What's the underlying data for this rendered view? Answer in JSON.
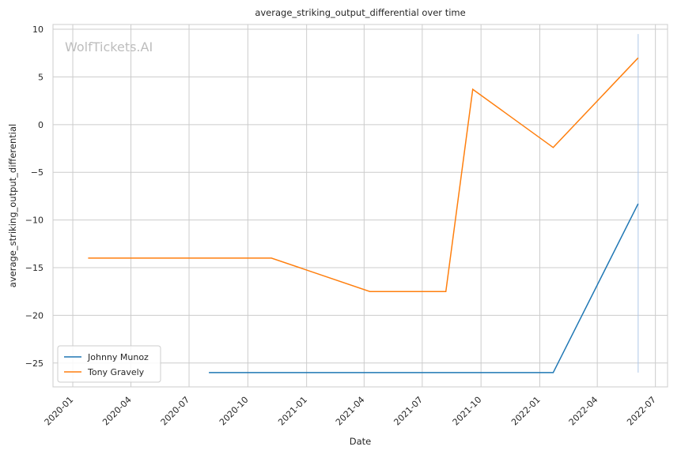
{
  "chart_data": {
    "type": "line",
    "title": "average_striking_output_differential over time",
    "xlabel": "Date",
    "ylabel": "average_striking_output_differential",
    "watermark": "WolfTickets.AI",
    "x_ticks": [
      "2020-01",
      "2020-04",
      "2020-07",
      "2020-10",
      "2021-01",
      "2021-04",
      "2021-07",
      "2021-10",
      "2022-01",
      "2022-04",
      "2022-07"
    ],
    "y_ticks": [
      10,
      5,
      0,
      -5,
      -10,
      -15,
      -20,
      -25
    ],
    "y_tick_labels": [
      "10",
      "5",
      "0",
      "−5",
      "−10",
      "−15",
      "−20",
      "−25"
    ],
    "xlim": [
      "2019-12-01",
      "2022-07-20"
    ],
    "ylim": [
      -27.5,
      10.5
    ],
    "grid": true,
    "legend_position": "lower-left",
    "colors": {
      "Johnny Munoz": "#1f77b4",
      "Tony Gravely": "#ff7f0e",
      "grid": "#cccccc",
      "vline": "#aec7e8"
    },
    "series": [
      {
        "name": "Johnny Munoz",
        "color": "#1f77b4",
        "points": [
          {
            "x": "2020-08-01",
            "y": -26
          },
          {
            "x": "2022-01-22",
            "y": -26
          },
          {
            "x": "2022-06-04",
            "y": -8.3
          }
        ]
      },
      {
        "name": "Tony Gravely",
        "color": "#ff7f0e",
        "points": [
          {
            "x": "2020-01-25",
            "y": -14
          },
          {
            "x": "2020-11-07",
            "y": -14
          },
          {
            "x": "2021-04-10",
            "y": -17.5
          },
          {
            "x": "2021-08-07",
            "y": -17.5
          },
          {
            "x": "2021-09-18",
            "y": 3.7
          },
          {
            "x": "2022-01-22",
            "y": -2.4
          },
          {
            "x": "2022-06-04",
            "y": 7
          }
        ]
      }
    ],
    "vertical_lines": [
      {
        "x": "2022-06-04",
        "y_from": -26,
        "y_to": 9.5
      }
    ]
  }
}
